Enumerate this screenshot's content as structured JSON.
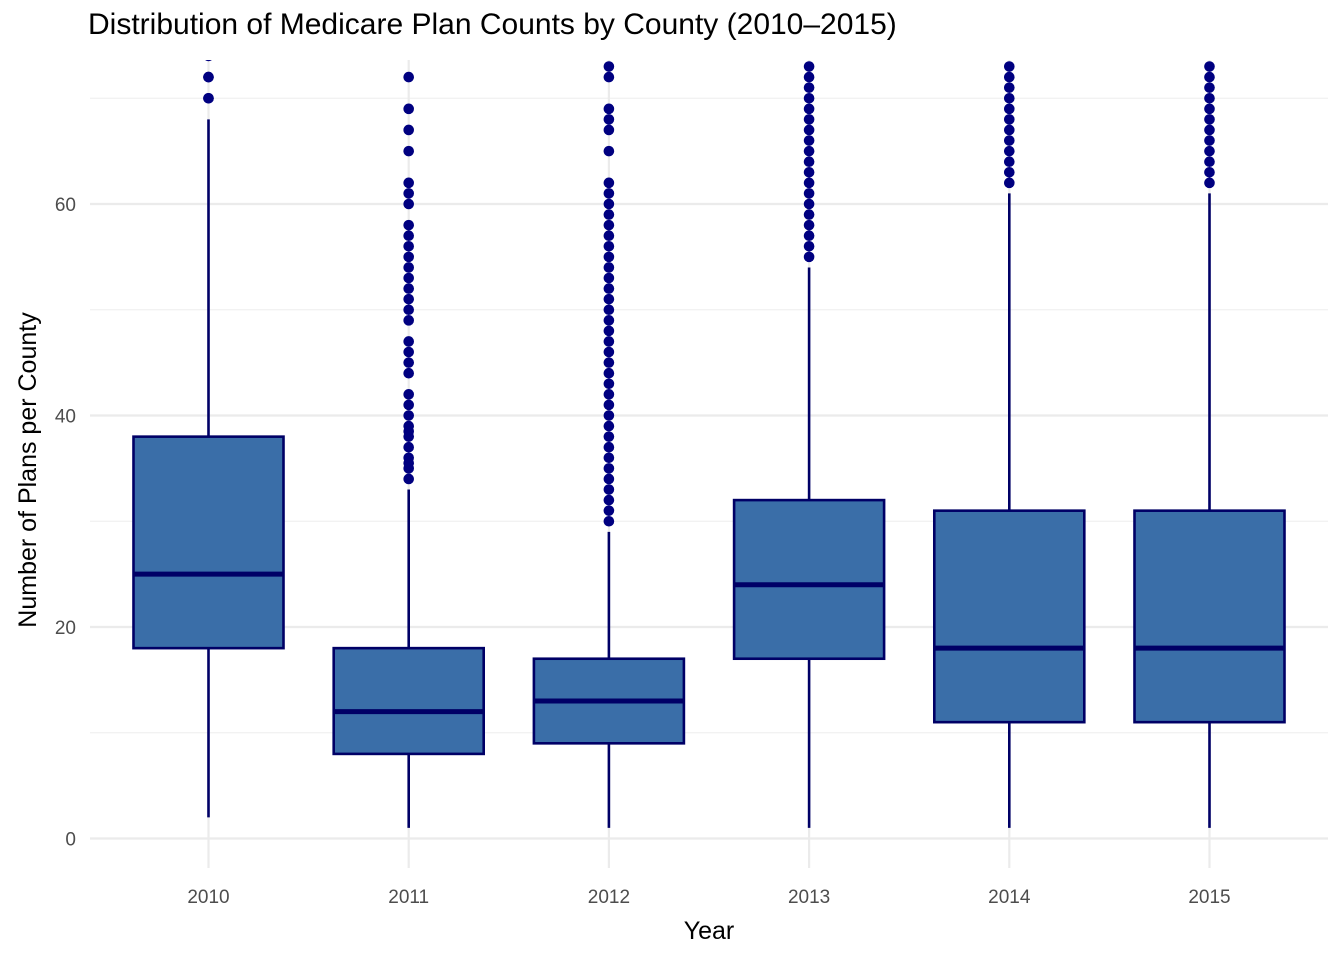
{
  "chart_data": {
    "type": "boxplot",
    "title": "Distribution of Medicare Plan Counts by County (2010–2015)",
    "xlabel": "Year",
    "ylabel": "Number of Plans per County",
    "categories": [
      "2010",
      "2011",
      "2012",
      "2013",
      "2014",
      "2015"
    ],
    "y_ticks": [
      0,
      20,
      40,
      60
    ],
    "ylim": [
      -4.5,
      73.5
    ],
    "grid": true,
    "legend": "none",
    "colors": {
      "box_fill": "#3a6ea8",
      "box_stroke": "#000066",
      "outlier": "#000080",
      "grid": "#ebebeb"
    },
    "boxes": [
      {
        "category": "2010",
        "whisker_low": 2,
        "q1": 18,
        "median": 25,
        "q3": 38,
        "whisker_high": 68,
        "outliers": [
          70,
          70,
          72,
          72,
          74
        ]
      },
      {
        "category": "2011",
        "whisker_low": 1,
        "q1": 8,
        "median": 12,
        "q3": 18,
        "whisker_high": 33,
        "outliers": [
          34,
          35,
          35.5,
          36,
          37,
          38,
          38.5,
          39,
          40,
          41,
          42,
          44,
          45,
          46,
          47,
          49,
          50,
          51,
          52,
          53,
          54,
          55,
          56,
          57,
          58,
          60,
          61,
          62,
          65,
          67,
          69,
          72
        ]
      },
      {
        "category": "2012",
        "whisker_low": 1,
        "q1": 9,
        "median": 13,
        "q3": 17,
        "whisker_high": 29,
        "outliers": [
          30,
          31,
          32,
          33,
          34,
          35,
          36,
          37,
          38,
          39,
          40,
          41,
          42,
          43,
          44,
          45,
          46,
          47,
          48,
          49,
          50,
          51,
          52,
          53,
          54,
          55,
          56,
          57,
          58,
          59,
          60,
          61,
          62,
          65,
          67,
          68,
          69,
          72,
          73
        ]
      },
      {
        "category": "2013",
        "whisker_low": 1,
        "q1": 17,
        "median": 24,
        "q3": 32,
        "whisker_high": 54,
        "outliers": [
          55,
          56,
          57,
          58,
          59,
          60,
          61,
          62,
          63,
          64,
          65,
          66,
          67,
          68,
          69,
          70,
          71,
          72,
          73
        ]
      },
      {
        "category": "2014",
        "whisker_low": 1,
        "q1": 11,
        "median": 18,
        "q3": 31,
        "whisker_high": 61,
        "outliers": [
          62,
          63,
          64,
          65,
          66,
          67,
          68,
          69,
          70,
          71,
          72,
          73
        ]
      },
      {
        "category": "2015",
        "whisker_low": 1,
        "q1": 11,
        "median": 18,
        "q3": 31,
        "whisker_high": 61,
        "outliers": [
          62,
          63,
          64,
          65,
          66,
          67,
          68,
          69,
          70,
          71,
          72,
          73
        ]
      }
    ]
  }
}
